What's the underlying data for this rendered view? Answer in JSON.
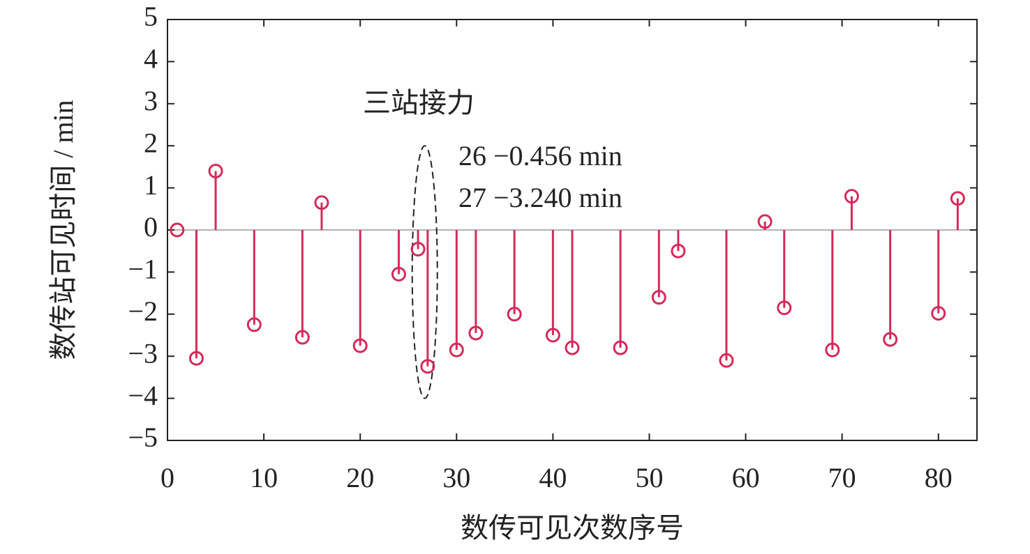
{
  "chart_data": {
    "type": "stem",
    "x_label": "数传可见次数序号",
    "y_label": "数传站可见时间 / min",
    "annotations": [
      "三站接力",
      "26 −0.456 min",
      "27 −3.240 min"
    ],
    "x": [
      1,
      3,
      5,
      9,
      14,
      16,
      20,
      24,
      26,
      27,
      30,
      32,
      36,
      40,
      42,
      47,
      51,
      53,
      58,
      62,
      64,
      69,
      71,
      75,
      80,
      82
    ],
    "series": [
      {
        "color": "#d42a5a",
        "values": [
          0,
          -3.05,
          1.4,
          -2.25,
          -2.55,
          0.65,
          -2.75,
          -1.05,
          -0.456,
          -3.24,
          -2.85,
          -2.45,
          -2.0,
          -2.5,
          -2.8,
          -2.8,
          -1.6,
          -0.5,
          -3.1,
          0.2,
          -1.85,
          -2.85,
          0.8,
          -2.6,
          -1.98,
          0.75
        ]
      }
    ],
    "xlim": [
      0,
      84
    ],
    "xticks": [
      0,
      10,
      20,
      30,
      40,
      50,
      60,
      70,
      80
    ],
    "ylim": [
      -5,
      5
    ],
    "yticks": [
      {
        "value": -5,
        "label": "−5"
      },
      {
        "value": -4,
        "label": "−4"
      },
      {
        "value": -3,
        "label": "−3"
      },
      {
        "value": -2,
        "label": "−2"
      },
      {
        "value": -1,
        "label": "−1"
      },
      0,
      1,
      2,
      3,
      4,
      5
    ],
    "grid": false
  }
}
